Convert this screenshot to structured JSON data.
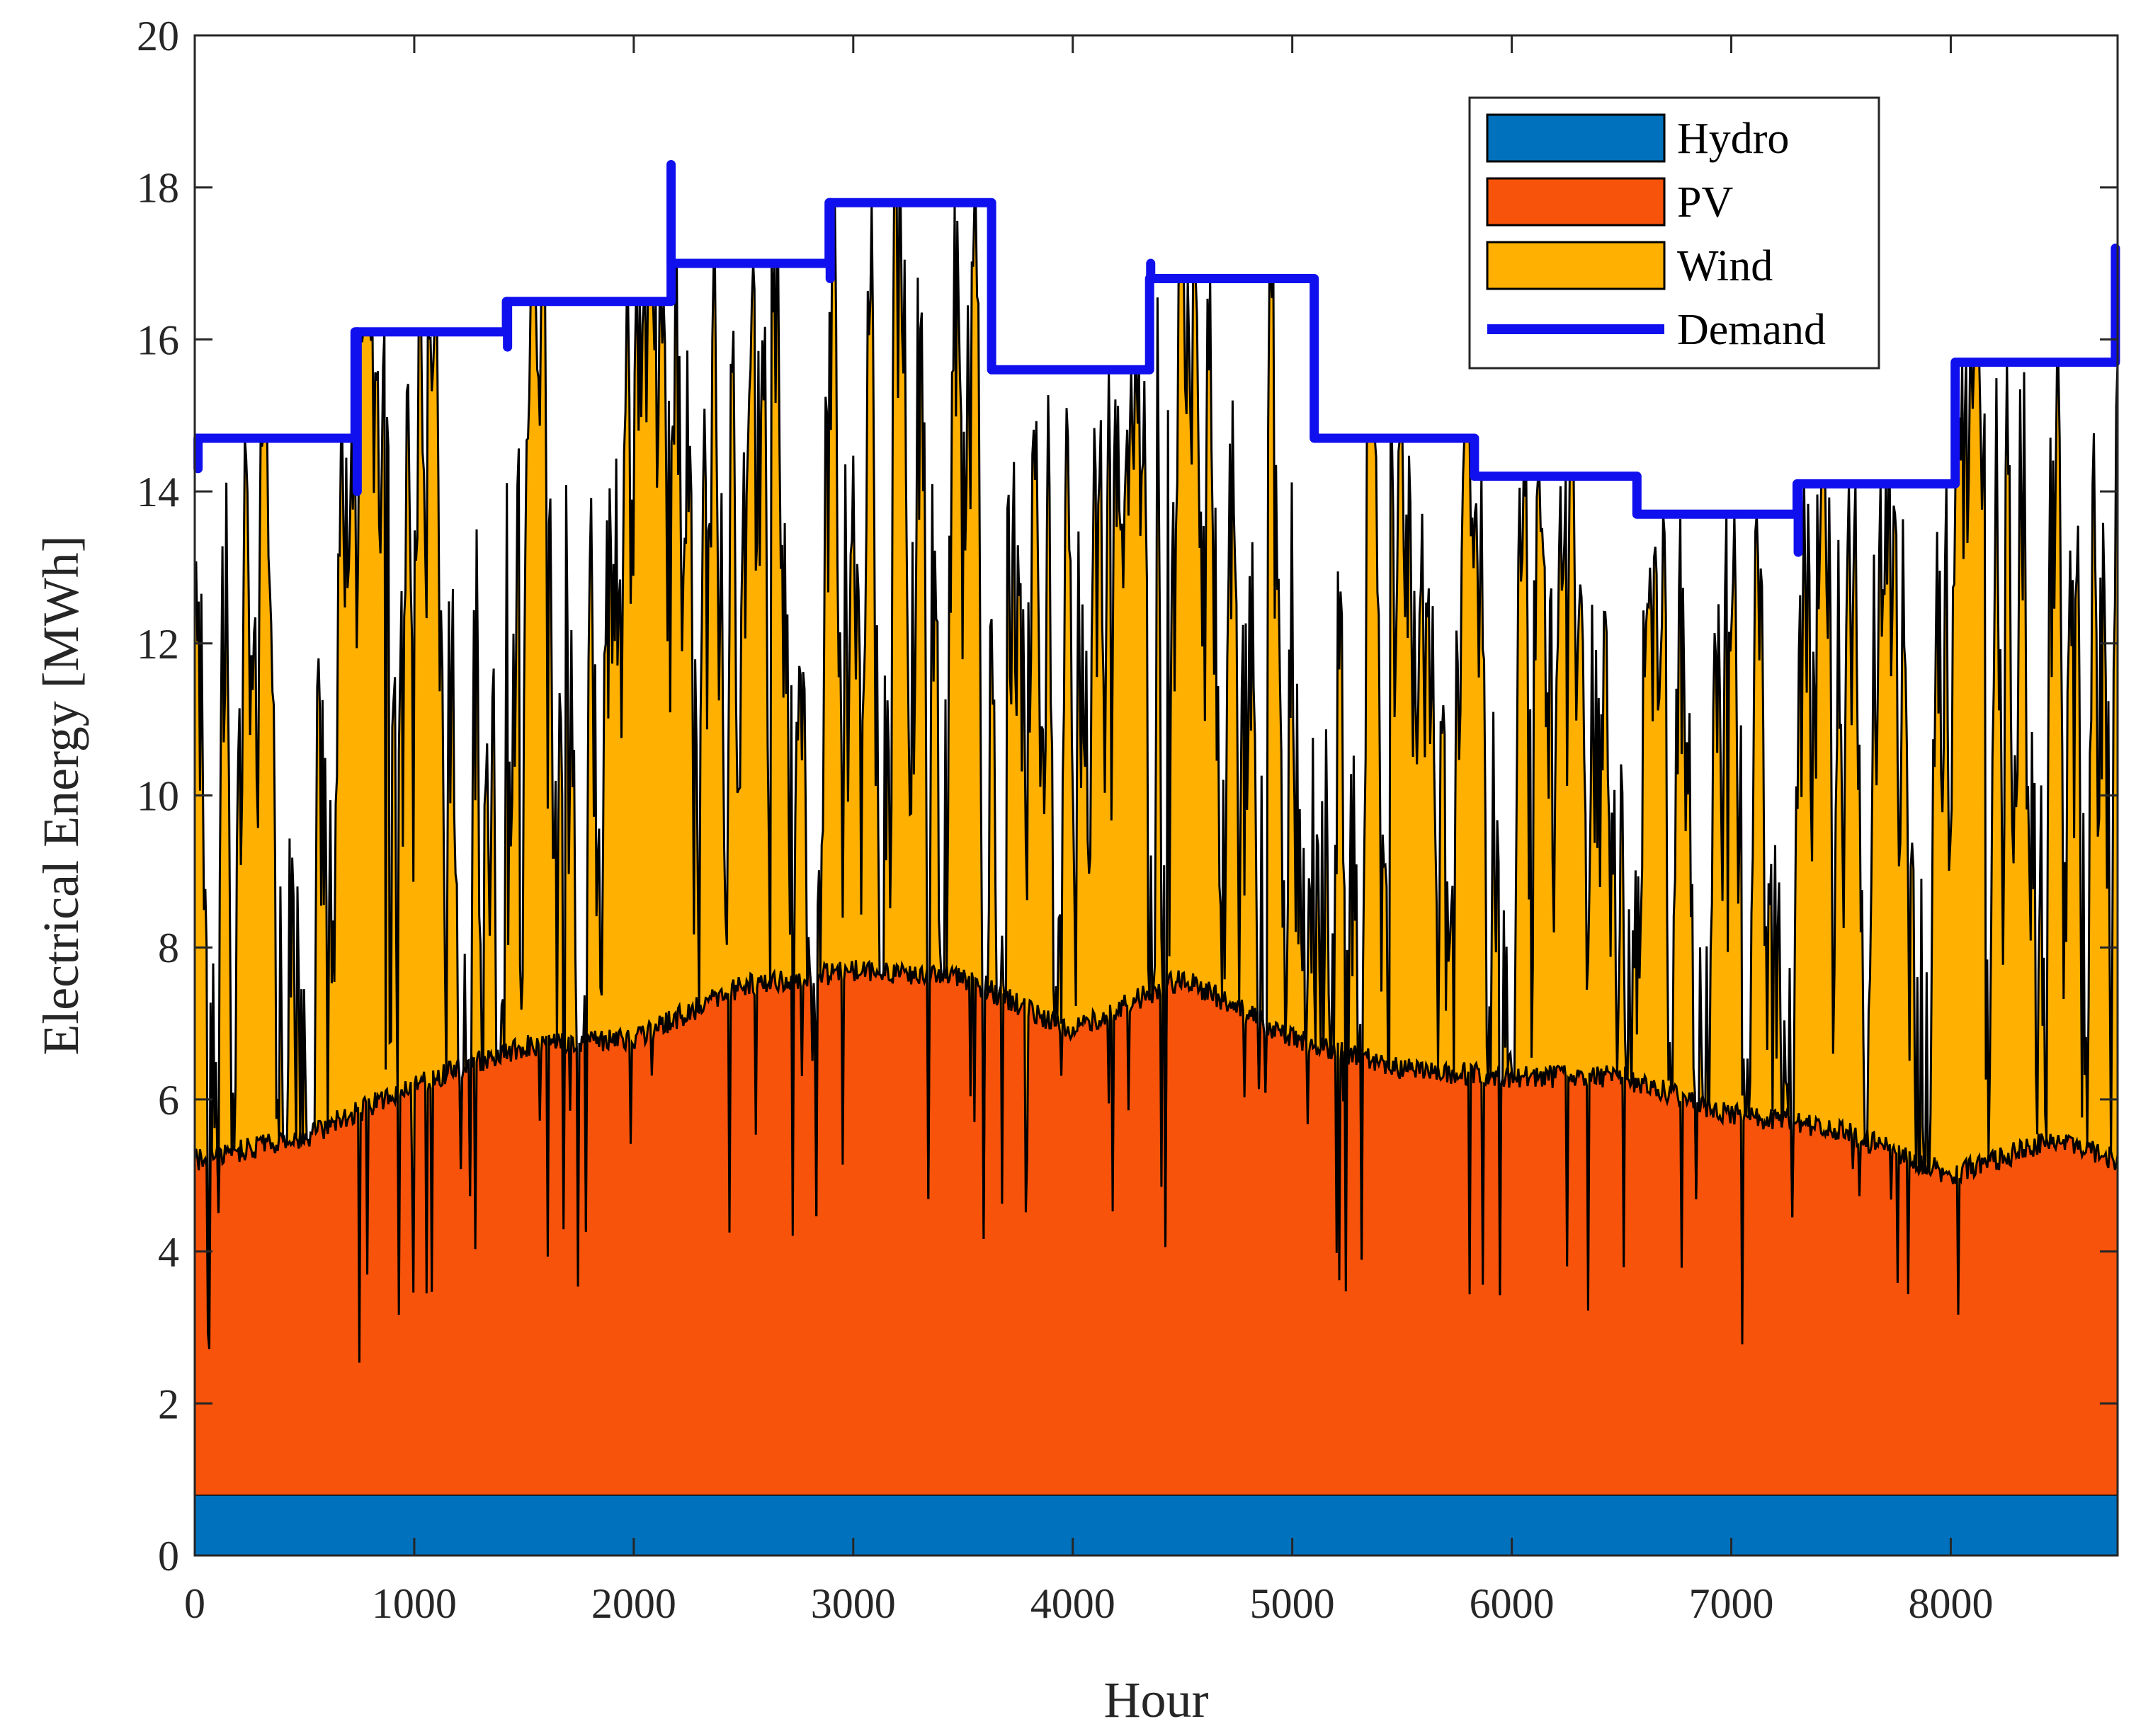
{
  "chart_data": {
    "type": "area",
    "title": "",
    "xlabel": "Hour",
    "ylabel": "Electrical Energy [MWh]",
    "xlim": [
      0,
      8760
    ],
    "ylim": [
      0,
      20
    ],
    "xticks": [
      0,
      1000,
      2000,
      3000,
      4000,
      5000,
      6000,
      7000,
      8000
    ],
    "yticks": [
      0,
      2,
      4,
      6,
      8,
      10,
      12,
      14,
      16,
      18,
      20
    ],
    "grid": false,
    "legend_position": "top-right",
    "stack_order": [
      "Hydro",
      "PV",
      "Wind"
    ],
    "series": [
      {
        "name": "Hydro",
        "kind": "stacked-area",
        "color": "#0072BD",
        "constant": 0.8
      },
      {
        "name": "PV",
        "kind": "stacked-area",
        "color": "#F7530A",
        "base_profile": {
          "x": [
            0,
            500,
            1000,
            1500,
            2000,
            2500,
            3000,
            3500,
            4000,
            4500,
            5000,
            5500,
            6000,
            6500,
            7000,
            7500,
            8000,
            8500,
            8760
          ],
          "cumulative_top": [
            5.2,
            5.5,
            6.2,
            6.7,
            6.8,
            7.5,
            7.7,
            7.6,
            6.9,
            7.6,
            6.8,
            6.4,
            6.3,
            6.3,
            5.8,
            5.6,
            5.0,
            5.5,
            5.2
          ]
        },
        "typical_dips_to": 2.5
      },
      {
        "name": "Wind",
        "kind": "stacked-area",
        "color": "#FFB000",
        "note": "highly variable; peaks reach up to demand level"
      },
      {
        "name": "Demand",
        "kind": "step-line",
        "color": "#1010EE",
        "steps": [
          {
            "from": 0,
            "to": 730,
            "value": 14.7
          },
          {
            "from": 730,
            "to": 1420,
            "value": 16.1
          },
          {
            "from": 1420,
            "to": 2170,
            "value": 16.5
          },
          {
            "from": 2170,
            "to": 2890,
            "value": 17.0
          },
          {
            "from": 2890,
            "to": 3630,
            "value": 17.8
          },
          {
            "from": 3630,
            "to": 4350,
            "value": 15.6
          },
          {
            "from": 4350,
            "to": 5100,
            "value": 16.8
          },
          {
            "from": 5100,
            "to": 5830,
            "value": 14.7
          },
          {
            "from": 5830,
            "to": 6570,
            "value": 14.2
          },
          {
            "from": 6570,
            "to": 7300,
            "value": 13.7
          },
          {
            "from": 7300,
            "to": 8020,
            "value": 14.1
          },
          {
            "from": 8020,
            "to": 8760,
            "value": 15.7
          }
        ],
        "spikes": [
          {
            "x": 15,
            "value": 14.3
          },
          {
            "x": 740,
            "value": 14.0
          },
          {
            "x": 1425,
            "value": 15.9
          },
          {
            "x": 2170,
            "value": 18.3
          },
          {
            "x": 2895,
            "value": 16.8
          },
          {
            "x": 4355,
            "value": 17.0
          },
          {
            "x": 7305,
            "value": 13.2
          },
          {
            "x": 8750,
            "value": 17.2
          }
        ]
      }
    ]
  },
  "legend": {
    "items": [
      {
        "label": "Hydro",
        "color": "#0072BD",
        "kind": "patch"
      },
      {
        "label": "PV",
        "color": "#F7530A",
        "kind": "patch"
      },
      {
        "label": "Wind",
        "color": "#FFB000",
        "kind": "patch"
      },
      {
        "label": "Demand",
        "color": "#1010EE",
        "kind": "line"
      }
    ]
  }
}
